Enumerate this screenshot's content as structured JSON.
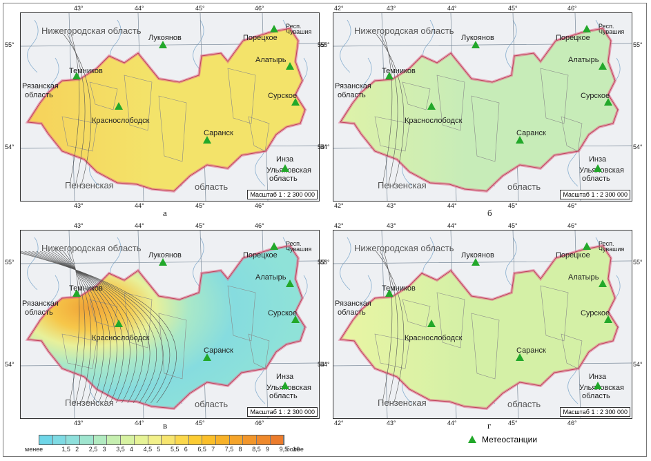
{
  "panels": [
    {
      "id": "a",
      "caption": "а",
      "fill": "#f3e36a",
      "fill2": "#f6d25a"
    },
    {
      "id": "b",
      "caption": "б",
      "fill": "#c7ecb8",
      "fill2": "#def2a8"
    },
    {
      "id": "v",
      "caption": "в",
      "fill": "#8fe0dc",
      "fill2": "#f0b843"
    },
    {
      "id": "g",
      "caption": "г",
      "fill": "#d4f0a6",
      "fill2": "#e9f5a4"
    }
  ],
  "map_labels": {
    "region_nn": "Нижегородская область",
    "region_ryazan_1": "Рязанская",
    "region_ryazan_2": "область",
    "region_penza_1": "Пензенская",
    "region_penza_2": "область",
    "region_ulyan_1": "Ульяновская",
    "region_ulyan_2": "область",
    "region_chuv_1": "Респ.",
    "region_chuv_2": "Чувашия",
    "scale": "Масштаб 1 : 2 300 000"
  },
  "stations": [
    "Темников",
    "Краснослободск",
    "Саранск",
    "Лукоянов",
    "Порецкое",
    "Алатырь",
    "Сурское",
    "Инза"
  ],
  "lon_ticks": [
    "42°",
    "43°",
    "44°",
    "45°",
    "46°"
  ],
  "lat_ticks": [
    "55°",
    "54°"
  ],
  "legend": {
    "labels": [
      "менее",
      "1,5",
      "2",
      "2,5",
      "3",
      "3,5",
      "4",
      "4,5",
      "5",
      "5,5",
      "6",
      "6,5",
      "7",
      "7,5",
      "8",
      "8,5",
      "9",
      "9,5",
      "10",
      "более"
    ],
    "colors": [
      "#6fd6e8",
      "#7fdbe4",
      "#8fe0dc",
      "#9fe5cf",
      "#b2ebc1",
      "#c6efb0",
      "#d7f2a2",
      "#e6f396",
      "#f2f08a",
      "#f7e56f",
      "#fbd84c",
      "#fccc33",
      "#fbbf2a",
      "#f8b229",
      "#f5a42a",
      "#f2962b",
      "#ef892c",
      "#ec7c2c"
    ],
    "station_label": "Метеостанции"
  }
}
